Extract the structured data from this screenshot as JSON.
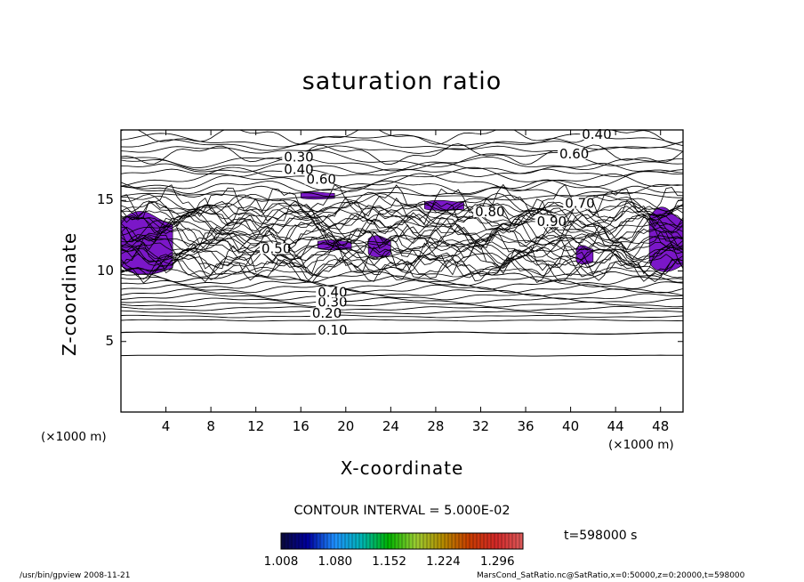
{
  "chart_data": {
    "type": "contour",
    "title": "saturation ratio",
    "xlabel": "X-coordinate",
    "ylabel": "Z-coordinate",
    "x_unit": "(×1000 m)",
    "y_unit": "(×1000 m)",
    "xlim": [
      0,
      50
    ],
    "ylim": [
      0,
      20
    ],
    "x_ticks": [
      4,
      8,
      12,
      16,
      20,
      24,
      28,
      32,
      36,
      40,
      44,
      48
    ],
    "y_ticks": [
      5,
      10,
      15
    ],
    "contour_interval_text": "CONTOUR INTERVAL = 5.000E-02",
    "contour_labels": [
      {
        "text": "0.10",
        "x": 17.5,
        "y": 5.6
      },
      {
        "text": "0.20",
        "x": 17.0,
        "y": 6.8
      },
      {
        "text": "0.30",
        "x": 17.5,
        "y": 7.6
      },
      {
        "text": "0.40",
        "x": 17.5,
        "y": 8.3
      },
      {
        "text": "0.30",
        "x": 14.5,
        "y": 17.9
      },
      {
        "text": "0.40",
        "x": 14.5,
        "y": 17.0
      },
      {
        "text": "0.60",
        "x": 16.5,
        "y": 16.3
      },
      {
        "text": "0.80",
        "x": 31.5,
        "y": 14.0
      },
      {
        "text": "0.90",
        "x": 37.0,
        "y": 13.3
      },
      {
        "text": "0.70",
        "x": 39.5,
        "y": 14.6
      },
      {
        "text": "0.60",
        "x": 39.0,
        "y": 18.1
      },
      {
        "text": "0.40",
        "x": 41.0,
        "y": 19.5
      },
      {
        "text": "0.50",
        "x": 12.5,
        "y": 11.4
      }
    ],
    "supersaturated_regions": [
      {
        "x": [
          0,
          4.6
        ],
        "y": [
          9.8,
          14.2
        ]
      },
      {
        "x": [
          16,
          19
        ],
        "y": [
          15.1,
          15.6
        ]
      },
      {
        "x": [
          17.5,
          20.5
        ],
        "y": [
          11.5,
          12.2
        ]
      },
      {
        "x": [
          22,
          24
        ],
        "y": [
          11.0,
          12.5
        ]
      },
      {
        "x": [
          27,
          30.5
        ],
        "y": [
          14.3,
          15.0
        ]
      },
      {
        "x": [
          40.5,
          42
        ],
        "y": [
          10.5,
          11.8
        ]
      },
      {
        "x": [
          47,
          50
        ],
        "y": [
          10.0,
          14.5
        ]
      }
    ],
    "colorbar": {
      "ticks": [
        "1.008",
        "1.080",
        "1.152",
        "1.224",
        "1.296"
      ],
      "min": 1.008,
      "max": 1.33,
      "colors": [
        "#0a0a3a",
        "#0000a0",
        "#1e90ff",
        "#00b4b4",
        "#00b400",
        "#9acd32",
        "#b48c00",
        "#c83c00",
        "#d22828",
        "#dc5a5a"
      ]
    },
    "time_label": "t=598000  s"
  },
  "footer": {
    "left": "/usr/bin/gpview   2008-11-21",
    "right": "MarsCond_SatRatio.nc@SatRatio,x=0:50000,z=0:20000,t=598000"
  }
}
